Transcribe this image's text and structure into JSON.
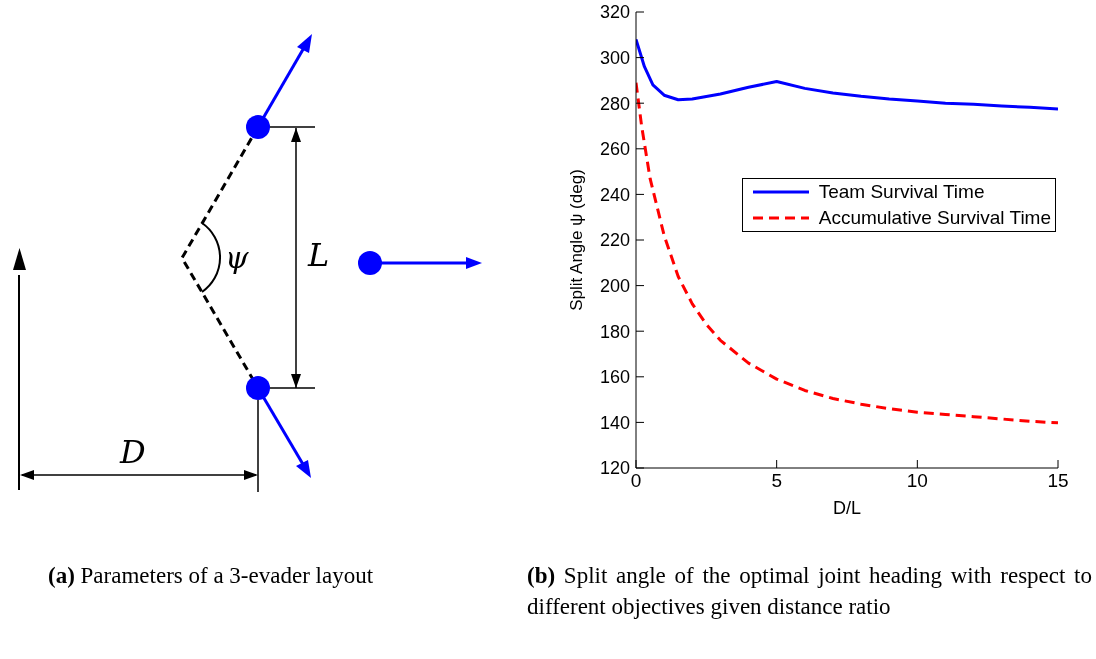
{
  "chart_data": {
    "type": "line",
    "xlabel": "D/L",
    "ylabel": "Split Angle ψ (deg)",
    "xlim": [
      0,
      15
    ],
    "xticks": [
      0,
      5,
      10,
      15
    ],
    "ylim": [
      120,
      320
    ],
    "yticks": [
      120,
      140,
      160,
      180,
      200,
      220,
      240,
      260,
      280,
      300,
      320
    ],
    "grid": false,
    "legend": "right",
    "marker": "none",
    "series": [
      {
        "name": "Team Survival Time",
        "color": "#0000ff",
        "line_style": "solid",
        "x": [
          0,
          0.3,
          0.6,
          1,
          1.5,
          2,
          3,
          4,
          5,
          6,
          7,
          8,
          9,
          10,
          11,
          12,
          13,
          14,
          15
        ],
        "values": [
          308,
          296,
          288,
          283.5,
          281.5,
          281.8,
          284,
          287,
          289.5,
          286.5,
          284.5,
          283,
          281.8,
          281,
          280,
          279.5,
          278.8,
          278.2,
          277.5
        ]
      },
      {
        "name": "Accumulative Survival Time",
        "color": "#ff0000",
        "line_style": "dashed",
        "x": [
          0,
          0.2,
          0.5,
          1,
          1.5,
          2,
          2.5,
          3,
          4,
          5,
          6,
          7,
          8,
          9,
          10,
          11,
          12,
          13,
          14,
          15
        ],
        "values": [
          289,
          270,
          247,
          222,
          204,
          192,
          183,
          176,
          166,
          159,
          154,
          150.5,
          148,
          146,
          144.5,
          143.5,
          142.5,
          141.5,
          140.5,
          139.8
        ]
      }
    ],
    "annotations": [
      "ψ",
      "L",
      "D",
      "(a) Parameters of a 3-evader layout",
      "(b) Split angle of the optimal joint heading with respect to different objectives given distance ratio"
    ]
  }
}
